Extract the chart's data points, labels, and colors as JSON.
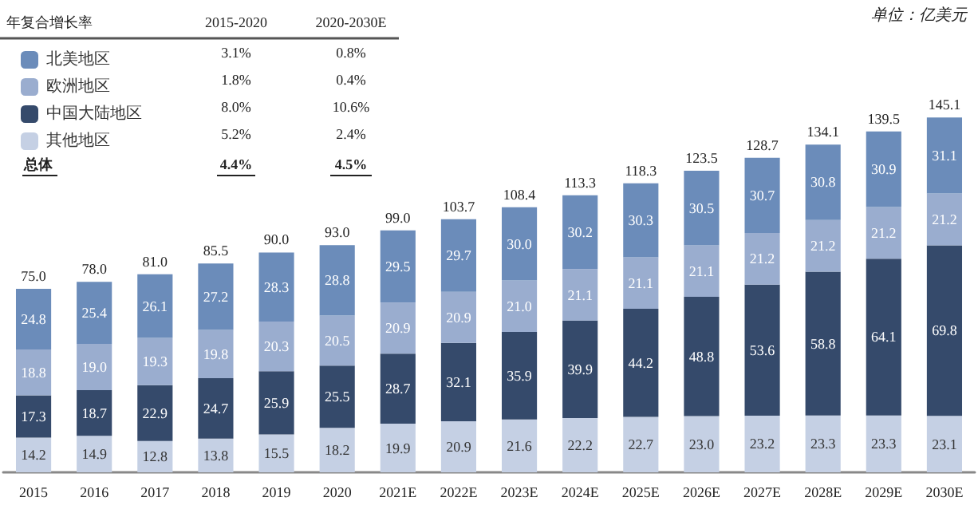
{
  "chart_data": {
    "type": "bar",
    "stacked": true,
    "legend": "top left",
    "categories": [
      "2015",
      "2016",
      "2017",
      "2018",
      "2019",
      "2020",
      "2021E",
      "2022E",
      "2023E",
      "2024E",
      "2025E",
      "2026E",
      "2027E",
      "2028E",
      "2029E",
      "2030E"
    ],
    "series": [
      {
        "name": "其他地区",
        "color": "#c5d0e4",
        "values": [
          14.2,
          14.9,
          12.8,
          13.8,
          15.5,
          18.2,
          19.9,
          20.9,
          21.6,
          22.2,
          22.7,
          23.0,
          23.2,
          23.3,
          23.3,
          23.1
        ],
        "value_labels": [
          "14.2",
          "14.9",
          "12.8",
          "13.8",
          "15.5",
          "18.2",
          "19.9",
          "20.9",
          "21.6",
          "22.2",
          "22.7",
          "23.0",
          "23.2",
          "23.3",
          "23.3",
          "23.1"
        ]
      },
      {
        "name": "中国大陆地区",
        "color": "#354a6b",
        "values": [
          17.3,
          18.7,
          22.9,
          24.7,
          25.9,
          25.5,
          28.7,
          32.1,
          35.9,
          39.9,
          44.2,
          48.8,
          53.6,
          58.8,
          64.1,
          69.8
        ],
        "value_labels": [
          "17.3",
          "18.7",
          "22.9",
          "24.7",
          "25.9",
          "25.5",
          "28.7",
          "32.1",
          "35.9",
          "39.9",
          "44.2",
          "48.8",
          "53.6",
          "58.8",
          "64.1",
          "69.8"
        ]
      },
      {
        "name": "欧洲地区",
        "color": "#9aadcf",
        "values": [
          18.8,
          19.0,
          19.3,
          19.8,
          20.3,
          20.5,
          20.9,
          20.9,
          21.0,
          21.1,
          21.1,
          21.1,
          21.2,
          21.2,
          21.2,
          21.2
        ],
        "value_labels": [
          "18.8",
          "19.0",
          "19.3",
          "19.8",
          "20.3",
          "20.5",
          "20.9",
          "20.9",
          "21.0",
          "21.1",
          "21.1",
          "21.1",
          "21.2",
          "21.2",
          "21.2",
          "21.2"
        ]
      },
      {
        "name": "北美地区",
        "color": "#6b8cba",
        "values": [
          24.8,
          25.4,
          26.1,
          27.2,
          28.3,
          28.8,
          29.5,
          29.7,
          30.0,
          30.2,
          30.3,
          30.5,
          30.7,
          30.8,
          30.9,
          31.1
        ],
        "value_labels": [
          "24.8",
          "25.4",
          "26.1",
          "27.2",
          "28.3",
          "28.8",
          "29.5",
          "29.7",
          "30.0",
          "30.2",
          "30.3",
          "30.5",
          "30.7",
          "30.8",
          "30.9",
          "31.1"
        ]
      }
    ],
    "totals": [
      "75.0",
      "78.0",
      "81.0",
      "85.5",
      "90.0",
      "93.0",
      "99.0",
      "103.7",
      "108.4",
      "113.3",
      "118.3",
      "123.5",
      "128.7",
      "134.1",
      "139.5",
      "145.1"
    ],
    "annotations": [
      "单位：亿美元",
      "年复合增长率",
      "2015-2020",
      "2020-2030E",
      "3.1%",
      "0.8%",
      "1.8%",
      "0.4%",
      "8.0%",
      "10.6%",
      "5.2%",
      "2.4%",
      "总体",
      "4.4%",
      "4.5%"
    ]
  }
}
